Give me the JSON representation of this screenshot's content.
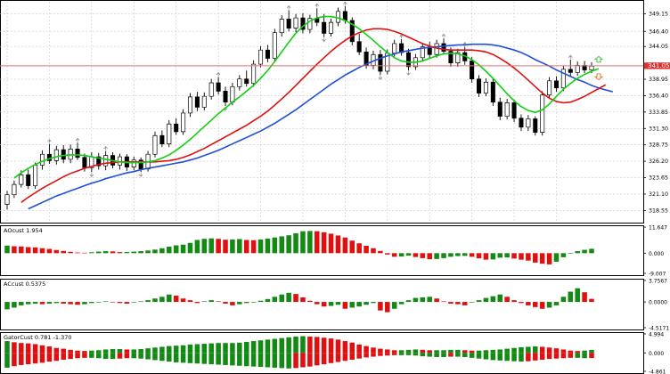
{
  "colors": {
    "background": "#ffffff",
    "grid": "#c8c8c8",
    "candle_body": "#000000",
    "current_price_line": "#e07070",
    "current_price_badge": "#e03030",
    "alligator_jaw": "#1f4fd6",
    "alligator_teeth": "#e01010",
    "alligator_lips": "#10d010",
    "histogram_up": "#138a13",
    "histogram_down": "#e01010",
    "fractal_marker": "#909090",
    "signal_up_arrow": "#4fc04f",
    "signal_down_arrow": "#e08040"
  },
  "chart_data": [
    {
      "type": "candlestick",
      "name": "main-price-chart",
      "ylim": [
        316.8,
        351.0
      ],
      "y_ticks": [
        "349.15",
        "346.40",
        "344.05",
        "341.05",
        "338.95",
        "336.40",
        "333.85",
        "331.30",
        "328.75",
        "326.20",
        "323.65",
        "321.10",
        "318.55"
      ],
      "current_price": "341.05",
      "candles": [
        [
          319.5,
          321.6,
          318.7,
          321.0
        ],
        [
          321.0,
          323.2,
          320.5,
          322.6
        ],
        [
          322.6,
          324.8,
          322.1,
          324.1
        ],
        [
          324.1,
          324.9,
          321.9,
          322.4
        ],
        [
          322.4,
          326.0,
          321.9,
          325.6
        ],
        [
          325.6,
          327.9,
          324.9,
          327.3
        ],
        [
          327.3,
          328.9,
          325.8,
          326.3
        ],
        [
          326.3,
          328.6,
          325.7,
          328.0
        ],
        [
          328.0,
          328.7,
          325.9,
          326.5
        ],
        [
          326.5,
          328.8,
          325.9,
          328.1
        ],
        [
          328.1,
          329.1,
          326.4,
          326.8
        ],
        [
          326.8,
          327.4,
          324.6,
          325.2
        ],
        [
          325.2,
          327.6,
          324.5,
          326.9
        ],
        [
          326.9,
          327.5,
          324.9,
          325.5
        ],
        [
          325.5,
          327.8,
          324.8,
          327.1
        ],
        [
          327.1,
          327.6,
          325.1,
          325.6
        ],
        [
          325.6,
          327.4,
          324.9,
          326.9
        ],
        [
          326.9,
          327.3,
          324.7,
          325.3
        ],
        [
          325.3,
          326.9,
          324.8,
          326.4
        ],
        [
          326.4,
          326.8,
          324.5,
          325.0
        ],
        [
          325.0,
          327.8,
          324.6,
          327.3
        ],
        [
          327.3,
          330.8,
          326.8,
          330.2
        ],
        [
          330.2,
          331.0,
          328.4,
          328.9
        ],
        [
          328.9,
          332.6,
          328.4,
          332.0
        ],
        [
          332.0,
          332.9,
          330.3,
          330.8
        ],
        [
          330.8,
          334.3,
          330.3,
          333.7
        ],
        [
          333.7,
          336.8,
          333.1,
          336.2
        ],
        [
          336.2,
          337.0,
          334.0,
          334.6
        ],
        [
          334.6,
          336.9,
          334.1,
          336.3
        ],
        [
          336.3,
          339.0,
          335.8,
          338.4
        ],
        [
          338.4,
          339.3,
          336.6,
          337.1
        ],
        [
          337.1,
          337.8,
          334.8,
          335.4
        ],
        [
          335.4,
          338.4,
          334.9,
          337.8
        ],
        [
          337.8,
          339.6,
          337.2,
          339.0
        ],
        [
          339.0,
          340.3,
          337.8,
          338.3
        ],
        [
          338.3,
          341.9,
          337.8,
          341.3
        ],
        [
          341.3,
          344.1,
          340.8,
          343.5
        ],
        [
          343.5,
          344.3,
          341.6,
          342.2
        ],
        [
          342.2,
          346.8,
          341.7,
          346.2
        ],
        [
          346.2,
          348.9,
          345.6,
          348.3
        ],
        [
          348.3,
          349.7,
          346.4,
          346.9
        ],
        [
          346.9,
          349.1,
          346.3,
          348.5
        ],
        [
          348.5,
          349.2,
          346.1,
          346.7
        ],
        [
          346.7,
          349.0,
          346.1,
          348.4
        ],
        [
          348.4,
          350.0,
          347.2,
          347.8
        ],
        [
          347.8,
          349.1,
          345.5,
          346.1
        ],
        [
          346.1,
          348.4,
          345.6,
          347.8
        ],
        [
          347.8,
          350.1,
          347.2,
          349.5
        ],
        [
          349.5,
          350.3,
          347.6,
          348.1
        ],
        [
          348.1,
          348.6,
          344.2,
          344.8
        ],
        [
          344.8,
          346.0,
          342.7,
          343.2
        ],
        [
          343.2,
          343.9,
          340.6,
          341.1
        ],
        [
          341.1,
          343.4,
          340.5,
          342.8
        ],
        [
          342.8,
          343.5,
          339.6,
          340.2
        ],
        [
          340.2,
          343.6,
          339.7,
          343.0
        ],
        [
          343.0,
          345.1,
          342.5,
          344.5
        ],
        [
          344.5,
          345.2,
          342.6,
          343.1
        ],
        [
          343.1,
          343.7,
          340.3,
          340.9
        ],
        [
          340.9,
          342.9,
          340.4,
          342.3
        ],
        [
          342.3,
          344.6,
          341.7,
          344.0
        ],
        [
          344.0,
          344.8,
          342.2,
          342.8
        ],
        [
          342.8,
          345.1,
          342.3,
          344.5
        ],
        [
          344.5,
          345.3,
          342.8,
          343.3
        ],
        [
          343.3,
          343.9,
          340.9,
          341.5
        ],
        [
          341.5,
          343.7,
          340.9,
          343.1
        ],
        [
          343.1,
          344.0,
          341.2,
          341.8
        ],
        [
          341.8,
          342.4,
          338.4,
          339.0
        ],
        [
          339.0,
          339.6,
          336.2,
          336.8
        ],
        [
          336.8,
          339.1,
          336.3,
          338.5
        ],
        [
          338.5,
          339.1,
          334.8,
          335.4
        ],
        [
          335.4,
          336.1,
          332.6,
          333.2
        ],
        [
          333.2,
          335.9,
          332.7,
          335.3
        ],
        [
          335.3,
          335.8,
          332.3,
          332.9
        ],
        [
          332.9,
          333.5,
          330.9,
          331.5
        ],
        [
          331.5,
          333.4,
          330.9,
          332.8
        ],
        [
          332.8,
          333.2,
          330.2,
          330.7
        ],
        [
          330.7,
          337.1,
          330.2,
          336.5
        ],
        [
          336.5,
          339.3,
          336.0,
          338.7
        ],
        [
          338.7,
          339.4,
          337.0,
          337.6
        ],
        [
          337.6,
          341.1,
          337.1,
          340.5
        ],
        [
          340.5,
          342.0,
          339.4,
          340.0
        ],
        [
          340.0,
          341.7,
          339.5,
          341.1
        ],
        [
          341.1,
          341.8,
          339.9,
          340.4
        ],
        [
          340.4,
          341.6,
          339.9,
          341.0
        ]
      ],
      "series": [
        {
          "name": "",
          "role": "alligator_jaw",
          "values": [
            318.8,
            319.3,
            319.8,
            320.3,
            320.8,
            321.2,
            321.6,
            322.0,
            322.4,
            322.8,
            323.1,
            323.5,
            323.8,
            324.1,
            324.4,
            324.6,
            324.9,
            325.1,
            325.3,
            325.5,
            325.7,
            325.9,
            326.1,
            326.4,
            326.7,
            327.1,
            327.5,
            327.9,
            328.4,
            328.9,
            329.4,
            329.9,
            330.4,
            330.9,
            331.5,
            332.1,
            332.8,
            333.5,
            334.2,
            335.0,
            335.8,
            336.6,
            337.4,
            338.2,
            338.9,
            339.6,
            340.2,
            340.8,
            341.3,
            341.8,
            342.2,
            342.6,
            342.9,
            343.2,
            343.4,
            343.6,
            343.8,
            343.9,
            344.0,
            344.1,
            344.2,
            344.3,
            344.3,
            344.4,
            344.4,
            344.4,
            344.3,
            344.1,
            343.8,
            343.5,
            343.1,
            342.6,
            342.0,
            341.5,
            341.0,
            340.4,
            339.9,
            339.4,
            338.9,
            338.5,
            338.0,
            337.6,
            337.3,
            337.0
          ]
        },
        {
          "name": "",
          "role": "alligator_teeth",
          "values": [
            319.8,
            320.6,
            321.3,
            322.0,
            322.6,
            323.2,
            323.8,
            324.3,
            324.7,
            325.1,
            325.4,
            325.7,
            325.9,
            326.0,
            326.1,
            326.1,
            326.1,
            326.1,
            326.1,
            326.1,
            326.2,
            326.3,
            326.5,
            326.8,
            327.2,
            327.7,
            328.2,
            328.8,
            329.4,
            330.0,
            330.6,
            331.2,
            331.8,
            332.5,
            333.2,
            334.0,
            334.9,
            335.9,
            336.9,
            338.0,
            339.1,
            340.2,
            341.3,
            342.3,
            343.3,
            344.2,
            345.0,
            345.7,
            346.2,
            346.6,
            346.8,
            346.8,
            346.7,
            346.4,
            346.0,
            345.5,
            345.0,
            344.5,
            344.1,
            343.8,
            343.6,
            343.5,
            343.5,
            343.5,
            343.5,
            343.4,
            343.2,
            342.8,
            342.2,
            341.5,
            340.7,
            339.8,
            338.8,
            337.8,
            336.8,
            336.0,
            335.5,
            335.3,
            335.4,
            335.8,
            336.3,
            336.9,
            337.5,
            338.1
          ]
        },
        {
          "name": "",
          "role": "alligator_lips",
          "values": [
            323.6,
            324.4,
            325.1,
            325.7,
            326.2,
            326.6,
            326.9,
            327.1,
            327.2,
            327.2,
            327.1,
            326.9,
            326.7,
            326.5,
            326.3,
            326.1,
            326.0,
            326.0,
            326.0,
            326.1,
            326.3,
            326.7,
            327.2,
            327.9,
            328.7,
            329.6,
            330.6,
            331.6,
            332.6,
            333.6,
            334.5,
            335.4,
            336.2,
            337.1,
            338.0,
            339.1,
            340.3,
            341.7,
            343.2,
            344.7,
            346.1,
            347.2,
            348.0,
            348.5,
            348.7,
            348.7,
            348.5,
            348.1,
            347.5,
            346.8,
            345.9,
            345.0,
            344.0,
            343.1,
            342.3,
            341.8,
            341.6,
            341.6,
            341.8,
            342.2,
            342.6,
            342.9,
            343.0,
            342.9,
            342.6,
            342.0,
            341.2,
            340.2,
            339.1,
            337.9,
            336.7,
            335.6,
            334.7,
            334.1,
            333.8,
            334.2,
            335.1,
            336.3,
            337.4,
            338.3,
            339.1,
            339.7,
            340.2,
            340.6
          ]
        }
      ]
    },
    {
      "type": "bar",
      "name": "AOcust-histogram",
      "title": "AOcust 1.954",
      "y_ticks": [
        "11.647",
        "0.000",
        "-9.007"
      ],
      "ylim": [
        -9.007,
        11.647
      ],
      "values": [
        3.4,
        3.1,
        3.0,
        2.7,
        2.6,
        2.2,
        1.9,
        1.4,
        1.0,
        0.6,
        0.3,
        0.2,
        0.4,
        0.7,
        0.9,
        0.8,
        0.5,
        0.5,
        0.7,
        0.9,
        1.2,
        1.6,
        2.2,
        2.9,
        3.5,
        3.8,
        4.6,
        5.9,
        6.4,
        6.6,
        6.4,
        6.0,
        6.1,
        6.3,
        5.9,
        5.8,
        6.1,
        6.5,
        7.0,
        7.5,
        8.0,
        8.9,
        9.8,
        9.9,
        9.8,
        9.3,
        8.7,
        7.9,
        7.0,
        5.6,
        4.4,
        3.3,
        2.2,
        1.0,
        -0.6,
        -1.6,
        -1.5,
        -1.1,
        -1.7,
        -2.2,
        -2.7,
        -2.6,
        -2.2,
        -1.6,
        -1.3,
        -1.2,
        -1.6,
        -2.3,
        -2.9,
        -2.8,
        -2.0,
        -1.9,
        -2.4,
        -2.9,
        -3.3,
        -4.2,
        -4.7,
        -5.0,
        -3.8,
        -1.8,
        -0.1,
        0.9,
        1.5,
        1.95
      ]
    },
    {
      "type": "bar",
      "name": "ACcust-histogram",
      "title": "ACcust 0.5375",
      "y_ticks": [
        "3.7567",
        "0.0000",
        "-4.5171"
      ],
      "ylim": [
        -4.5171,
        3.7567
      ],
      "values": [
        -1.3,
        -1.0,
        -0.6,
        -0.4,
        -0.3,
        -0.4,
        -0.3,
        -0.2,
        -0.3,
        -0.4,
        -0.5,
        -0.4,
        -0.2,
        0.0,
        0.1,
        0.0,
        -0.2,
        -0.3,
        -0.1,
        0.1,
        0.3,
        0.6,
        0.9,
        1.3,
        1.1,
        0.6,
        0.3,
        -0.2,
        0.1,
        0.3,
        0.1,
        -0.3,
        -0.6,
        -0.4,
        -0.2,
        -0.1,
        0.2,
        0.5,
        0.9,
        1.3,
        1.6,
        1.4,
        0.8,
        0.2,
        -0.4,
        -0.8,
        -0.7,
        -0.5,
        -1.2,
        -1.0,
        -0.8,
        -0.5,
        -0.2,
        -1.5,
        -1.8,
        -1.2,
        -0.4,
        0.3,
        0.7,
        0.8,
        0.9,
        0.6,
        0.1,
        -0.3,
        -0.4,
        -0.6,
        -0.1,
        0.3,
        0.7,
        1.0,
        1.3,
        0.9,
        0.3,
        -0.2,
        -0.6,
        -0.9,
        -1.2,
        -1.0,
        -0.6,
        0.9,
        1.8,
        2.4,
        1.7,
        0.54
      ]
    },
    {
      "type": "bar",
      "name": "GatorCust-histogram",
      "title": "GatorCust 0.781 -1.370",
      "y_ticks": [
        "4.994",
        "0.000",
        "-4.861"
      ],
      "ylim": [
        -4.861,
        4.994
      ],
      "values_upper": [
        3.1,
        2.8,
        2.6,
        2.5,
        2.3,
        2.0,
        1.7,
        1.3,
        1.1,
        0.8,
        0.6,
        0.5,
        0.6,
        0.7,
        0.9,
        1.0,
        1.0,
        0.9,
        0.9,
        1.0,
        1.2,
        1.4,
        1.6,
        1.8,
        1.9,
        2.0,
        2.2,
        2.3,
        2.4,
        2.5,
        2.6,
        2.6,
        2.6,
        2.7,
        2.9,
        3.1,
        3.3,
        3.5,
        3.7,
        3.9,
        4.1,
        4.3,
        4.4,
        4.3,
        4.2,
        4.0,
        3.8,
        3.5,
        3.1,
        2.7,
        2.2,
        1.8,
        1.4,
        1.1,
        0.9,
        0.7,
        0.7,
        0.8,
        0.9,
        0.8,
        0.7,
        0.7,
        0.7,
        0.8,
        0.8,
        0.7,
        0.6,
        0.6,
        0.7,
        0.8,
        0.9,
        1.1,
        1.3,
        1.5,
        1.6,
        1.7,
        1.6,
        1.4,
        1.2,
        0.9,
        0.6,
        0.5,
        0.6,
        0.78
      ],
      "values_lower": [
        -3.9,
        -3.5,
        -3.2,
        -3.0,
        -2.8,
        -2.6,
        -2.3,
        -2.1,
        -1.8,
        -1.6,
        -1.4,
        -1.3,
        -1.3,
        -1.4,
        -1.6,
        -1.6,
        -1.5,
        -1.4,
        -1.4,
        -1.5,
        -1.7,
        -1.9,
        -2.1,
        -2.3,
        -2.5,
        -2.6,
        -2.7,
        -2.8,
        -2.9,
        -3.0,
        -3.1,
        -3.2,
        -3.3,
        -3.4,
        -3.5,
        -3.6,
        -3.7,
        -3.8,
        -3.9,
        -4.0,
        -4.1,
        -4.0,
        -3.8,
        -3.6,
        -3.3,
        -3.0,
        -2.7,
        -2.4,
        -2.1,
        -1.8,
        -1.5,
        -1.2,
        -1.0,
        -0.8,
        -0.7,
        -0.6,
        -0.6,
        -0.6,
        -0.7,
        -0.9,
        -1.0,
        -1.1,
        -1.1,
        -1.0,
        -1.0,
        -1.1,
        -1.3,
        -1.5,
        -1.7,
        -1.9,
        -2.0,
        -2.1,
        -2.2,
        -2.3,
        -2.2,
        -2.0,
        -1.8,
        -1.6,
        -1.5,
        -1.4,
        -1.3,
        -1.3,
        -1.4,
        -1.37
      ]
    }
  ]
}
